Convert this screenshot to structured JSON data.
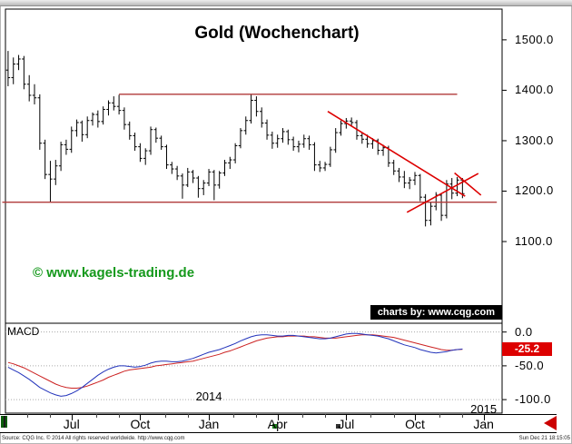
{
  "branding": {
    "watermark": "© www.kagels-trading.de",
    "watermark_color": "#15991c",
    "charts_by": "charts by: www.cqg.com"
  },
  "footer": {
    "source": "Source: CQG Inc. © 2014 All rights reserved worldwide. http://www.cqg.com",
    "timestamp": "Sun Dec 21 18:15:05"
  },
  "scrollbar": {
    "left_arrow_icon": "scroll-left-arrow",
    "arrow_color": "#cc0000"
  },
  "chart_data": {
    "type": "candlestick",
    "title": "Gold (Wochenchart)",
    "instrument": "Gold",
    "timeframe": "weekly",
    "x_axis": {
      "domain_max": 94,
      "ticks": [
        {
          "label": "Jul",
          "i": 12
        },
        {
          "label": "Oct",
          "i": 25
        },
        {
          "label": "Jan",
          "i": 38
        },
        {
          "label": "Apr",
          "i": 51
        },
        {
          "label": "Jul",
          "i": 64
        },
        {
          "label": "Oct",
          "i": 77
        },
        {
          "label": "Jan",
          "i": 90
        }
      ],
      "year_labels": [
        {
          "label": "2014",
          "i": 38
        },
        {
          "label": "2015",
          "i": 90
        }
      ]
    },
    "price_panel": {
      "ylim": [
        938,
        1561
      ],
      "y_ticks": [
        1500,
        1400,
        1300,
        1200,
        1100
      ],
      "bar_color": "#000000",
      "bars_ohlc": [
        [
          1440,
          1478,
          1408,
          1425
        ],
        [
          1425,
          1465,
          1412,
          1452
        ],
        [
          1452,
          1470,
          1440,
          1462
        ],
        [
          1462,
          1468,
          1402,
          1412
        ],
        [
          1412,
          1430,
          1378,
          1390
        ],
        [
          1390,
          1412,
          1372,
          1385
        ],
        [
          1385,
          1392,
          1282,
          1295
        ],
        [
          1295,
          1302,
          1224,
          1233
        ],
        [
          1233,
          1260,
          1179,
          1224
        ],
        [
          1224,
          1262,
          1212,
          1250
        ],
        [
          1250,
          1298,
          1240,
          1292
        ],
        [
          1292,
          1302,
          1272,
          1283
        ],
        [
          1283,
          1328,
          1276,
          1320
        ],
        [
          1320,
          1342,
          1308,
          1336
        ],
        [
          1336,
          1340,
          1298,
          1312
        ],
        [
          1312,
          1348,
          1305,
          1340
        ],
        [
          1340,
          1356,
          1330,
          1352
        ],
        [
          1352,
          1360,
          1326,
          1338
        ],
        [
          1338,
          1368,
          1332,
          1362
        ],
        [
          1362,
          1380,
          1350,
          1375
        ],
        [
          1375,
          1388,
          1360,
          1368
        ],
        [
          1368,
          1391,
          1352,
          1360
        ],
        [
          1360,
          1366,
          1322,
          1332
        ],
        [
          1332,
          1338,
          1302,
          1310
        ],
        [
          1310,
          1316,
          1280,
          1288
        ],
        [
          1288,
          1295,
          1258,
          1265
        ],
        [
          1265,
          1285,
          1252,
          1280
        ],
        [
          1280,
          1328,
          1272,
          1322
        ],
        [
          1322,
          1326,
          1296,
          1305
        ],
        [
          1305,
          1310,
          1282,
          1288
        ],
        [
          1288,
          1292,
          1244,
          1252
        ],
        [
          1252,
          1258,
          1234,
          1244
        ],
        [
          1244,
          1250,
          1222,
          1230
        ],
        [
          1230,
          1235,
          1185,
          1212
        ],
        [
          1212,
          1246,
          1208,
          1238
        ],
        [
          1238,
          1242,
          1216,
          1226
        ],
        [
          1226,
          1230,
          1187,
          1205
        ],
        [
          1205,
          1222,
          1192,
          1216
        ],
        [
          1216,
          1244,
          1210,
          1238
        ],
        [
          1238,
          1242,
          1182,
          1212
        ],
        [
          1212,
          1240,
          1205,
          1236
        ],
        [
          1236,
          1262,
          1230,
          1256
        ],
        [
          1256,
          1268,
          1244,
          1262
        ],
        [
          1262,
          1295,
          1255,
          1290
        ],
        [
          1290,
          1325,
          1285,
          1320
        ],
        [
          1320,
          1348,
          1312,
          1340
        ],
        [
          1340,
          1392,
          1334,
          1380
        ],
        [
          1380,
          1388,
          1348,
          1358
        ],
        [
          1358,
          1366,
          1326,
          1335
        ],
        [
          1335,
          1342,
          1302,
          1311
        ],
        [
          1311,
          1318,
          1284,
          1295
        ],
        [
          1295,
          1312,
          1286,
          1304
        ],
        [
          1304,
          1325,
          1296,
          1318
        ],
        [
          1318,
          1322,
          1292,
          1302
        ],
        [
          1302,
          1308,
          1280,
          1288
        ],
        [
          1288,
          1300,
          1277,
          1293
        ],
        [
          1293,
          1312,
          1286,
          1304
        ],
        [
          1304,
          1310,
          1282,
          1292
        ],
        [
          1292,
          1297,
          1240,
          1252
        ],
        [
          1252,
          1260,
          1238,
          1246
        ],
        [
          1246,
          1258,
          1240,
          1253
        ],
        [
          1253,
          1288,
          1248,
          1282
        ],
        [
          1282,
          1325,
          1276,
          1316
        ],
        [
          1316,
          1340,
          1310,
          1334
        ],
        [
          1334,
          1345,
          1324,
          1339
        ],
        [
          1339,
          1346,
          1328,
          1336
        ],
        [
          1336,
          1341,
          1302,
          1310
        ],
        [
          1310,
          1316,
          1294,
          1303
        ],
        [
          1303,
          1312,
          1286,
          1294
        ],
        [
          1294,
          1305,
          1284,
          1300
        ],
        [
          1300,
          1304,
          1272,
          1281
        ],
        [
          1281,
          1292,
          1270,
          1286
        ],
        [
          1286,
          1290,
          1248,
          1256
        ],
        [
          1256,
          1262,
          1232,
          1240
        ],
        [
          1240,
          1246,
          1218,
          1228
        ],
        [
          1228,
          1240,
          1206,
          1216
        ],
        [
          1216,
          1228,
          1204,
          1222
        ],
        [
          1222,
          1238,
          1212,
          1231
        ],
        [
          1231,
          1234,
          1180,
          1188
        ],
        [
          1188,
          1194,
          1130,
          1142
        ],
        [
          1142,
          1178,
          1132,
          1170
        ],
        [
          1170,
          1198,
          1162,
          1192
        ],
        [
          1192,
          1196,
          1141,
          1152
        ],
        [
          1152,
          1222,
          1146,
          1214
        ],
        [
          1214,
          1226,
          1184,
          1196
        ],
        [
          1196,
          1228,
          1190,
          1222
        ],
        [
          1222,
          1226,
          1186,
          1195
        ]
      ],
      "trendlines": [
        {
          "name": "horizontal-resistance",
          "i1": 21,
          "p1": 1392,
          "i2": 85,
          "p2": 1392,
          "color": "#b03a3a",
          "width": 1.4
        },
        {
          "name": "horizontal-support",
          "i1": -1.1,
          "p1": 1178,
          "i2": 92.5,
          "p2": 1178,
          "color": "#b03a3a",
          "width": 1.4
        },
        {
          "name": "wedge-upper-downtrend",
          "i1": 60.5,
          "p1": 1358,
          "i2": 86.5,
          "p2": 1190,
          "color": "#dd0000",
          "width": 1.6
        },
        {
          "name": "wedge-lower-uptrend",
          "i1": 75.5,
          "p1": 1158,
          "i2": 89,
          "p2": 1235,
          "color": "#dd0000",
          "width": 1.6
        },
        {
          "name": "breakdown-line",
          "i1": 84.5,
          "p1": 1236,
          "i2": 89.5,
          "p2": 1192,
          "color": "#dd0000",
          "width": 1.6
        }
      ]
    },
    "macd_panel": {
      "label": "MACD",
      "ylim": [
        -120,
        13
      ],
      "y_ticks": [
        0,
        -50,
        -100
      ],
      "last_value": -25.2,
      "badge_color": "#dd0000",
      "macd_color": "#2233bb",
      "signal_color": "#cc2222",
      "macd": [
        -52,
        -56,
        -60,
        -65,
        -70,
        -76,
        -82,
        -86,
        -90,
        -93,
        -95,
        -94,
        -91,
        -87,
        -82,
        -76,
        -70,
        -64,
        -59,
        -55,
        -52,
        -50,
        -50,
        -51,
        -52,
        -51,
        -49,
        -46,
        -44,
        -43,
        -43,
        -44,
        -44,
        -43,
        -41,
        -39,
        -36,
        -33,
        -30,
        -28,
        -26,
        -23,
        -20,
        -17,
        -13,
        -10,
        -7,
        -5,
        -4,
        -4,
        -5,
        -6,
        -6,
        -5,
        -5,
        -6,
        -7,
        -8,
        -9,
        -10,
        -10,
        -9,
        -7,
        -5,
        -3,
        -2,
        -2,
        -3,
        -4,
        -5,
        -6,
        -8,
        -10,
        -13,
        -16,
        -19,
        -21,
        -23,
        -26,
        -28,
        -30,
        -31,
        -30,
        -29,
        -27,
        -26,
        -25.2
      ],
      "signal": [
        -45,
        -47,
        -50,
        -53,
        -57,
        -61,
        -65,
        -69,
        -73,
        -77,
        -80,
        -82,
        -83,
        -83,
        -82,
        -80,
        -77,
        -74,
        -71,
        -67,
        -64,
        -61,
        -58,
        -56,
        -55,
        -54,
        -53,
        -52,
        -50,
        -49,
        -48,
        -47,
        -46,
        -45,
        -44,
        -43,
        -41,
        -39,
        -37,
        -35,
        -33,
        -30,
        -28,
        -25,
        -22,
        -19,
        -16,
        -13,
        -11,
        -9,
        -8,
        -7,
        -7,
        -6,
        -6,
        -6,
        -6,
        -7,
        -7,
        -8,
        -9,
        -9,
        -9,
        -8,
        -7,
        -6,
        -5,
        -4,
        -4,
        -4,
        -5,
        -6,
        -7,
        -8,
        -10,
        -12,
        -14,
        -16,
        -18,
        -20,
        -22,
        -24,
        -26,
        -27,
        -27,
        -26,
        -25.5
      ]
    }
  }
}
